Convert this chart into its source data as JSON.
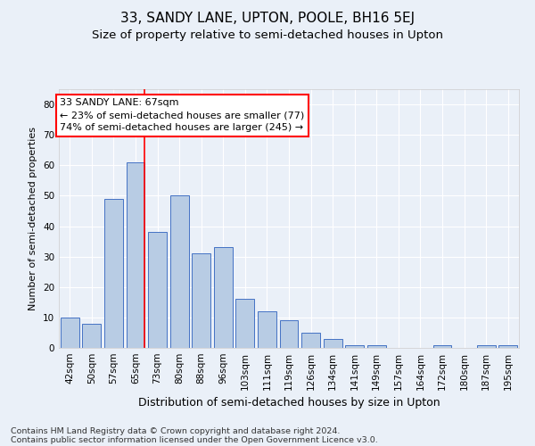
{
  "title1": "33, SANDY LANE, UPTON, POOLE, BH16 5EJ",
  "title2": "Size of property relative to semi-detached houses in Upton",
  "xlabel": "Distribution of semi-detached houses by size in Upton",
  "ylabel": "Number of semi-detached properties",
  "categories": [
    "42sqm",
    "50sqm",
    "57sqm",
    "65sqm",
    "73sqm",
    "80sqm",
    "88sqm",
    "96sqm",
    "103sqm",
    "111sqm",
    "119sqm",
    "126sqm",
    "134sqm",
    "141sqm",
    "149sqm",
    "157sqm",
    "164sqm",
    "172sqm",
    "180sqm",
    "187sqm",
    "195sqm"
  ],
  "values": [
    10,
    8,
    49,
    61,
    38,
    50,
    31,
    33,
    16,
    12,
    9,
    5,
    3,
    1,
    1,
    0,
    0,
    1,
    0,
    1,
    1
  ],
  "bar_color": "#b8cce4",
  "bar_edge_color": "#4472c4",
  "annotation_title": "33 SANDY LANE: 67sqm",
  "annotation_smaller": "← 23% of semi-detached houses are smaller (77)",
  "annotation_larger": "74% of semi-detached houses are larger (245) →",
  "annotation_box_color": "white",
  "annotation_box_edge_color": "red",
  "vline_color": "red",
  "vline_x": 3.425,
  "ylim": [
    0,
    85
  ],
  "yticks": [
    0,
    10,
    20,
    30,
    40,
    50,
    60,
    70,
    80
  ],
  "footnote1": "Contains HM Land Registry data © Crown copyright and database right 2024.",
  "footnote2": "Contains public sector information licensed under the Open Government Licence v3.0.",
  "background_color": "#eaf0f8",
  "grid_color": "white",
  "title1_fontsize": 11,
  "title2_fontsize": 9.5,
  "xlabel_fontsize": 9,
  "ylabel_fontsize": 8,
  "annotation_fontsize": 8,
  "footnote_fontsize": 6.8,
  "tick_fontsize": 7.5
}
